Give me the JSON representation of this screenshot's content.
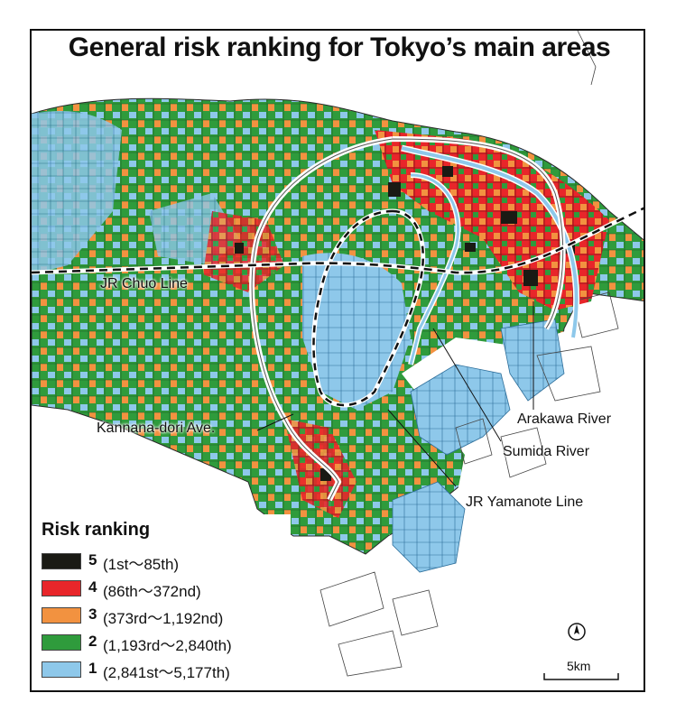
{
  "title": "General risk ranking for Tokyo’s main areas",
  "labels": {
    "chuo_line": "JR Chuo Line",
    "kannana": "Kannana-dori Ave.",
    "arakawa": "Arakawa River",
    "sumida": "Sumida River",
    "yamanote": "JR Yamanote Line"
  },
  "legend": {
    "title": "Risk ranking",
    "items": [
      {
        "rank": "5",
        "range": "(1st〜85th)",
        "color": "#1a1a14"
      },
      {
        "rank": "4",
        "range": "(86th〜372nd)",
        "color": "#e8262a"
      },
      {
        "rank": "3",
        "range": "(373rd〜1,192nd)",
        "color": "#f29240"
      },
      {
        "rank": "2",
        "range": "(1,193rd〜2,840th)",
        "color": "#2f9b3c"
      },
      {
        "rank": "1",
        "range": "(2,841st〜5,177th)",
        "color": "#8ec8ea"
      }
    ]
  },
  "scale": {
    "label": "5km"
  },
  "north_icon": "north-arrow-icon"
}
